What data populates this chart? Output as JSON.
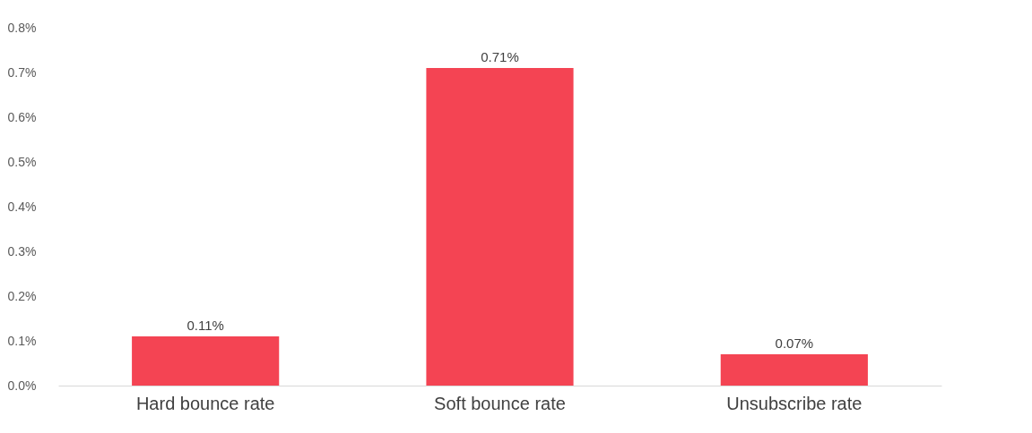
{
  "chart_data": {
    "type": "bar",
    "categories": [
      "Hard bounce rate",
      "Soft bounce rate",
      "Unsubscribe rate"
    ],
    "values": [
      0.11,
      0.71,
      0.07
    ],
    "value_labels": [
      "0.11%",
      "0.71%",
      "0.07%"
    ],
    "color": "#f44453",
    "ylim": [
      0,
      0.8
    ],
    "yticks": [
      {
        "value": 0,
        "label": "0.0%"
      },
      {
        "value": 0.1,
        "label": "0.1%"
      },
      {
        "value": 0.2,
        "label": "0.2%"
      },
      {
        "value": 0.3,
        "label": "0.3%"
      },
      {
        "value": 0.4,
        "label": "0.4%"
      },
      {
        "value": 0.5,
        "label": "0.5%"
      },
      {
        "value": 0.6,
        "label": "0.6%"
      },
      {
        "value": 0.7,
        "label": "0.7%"
      },
      {
        "value": 0.8,
        "label": "0.8%"
      }
    ],
    "grid": false
  }
}
